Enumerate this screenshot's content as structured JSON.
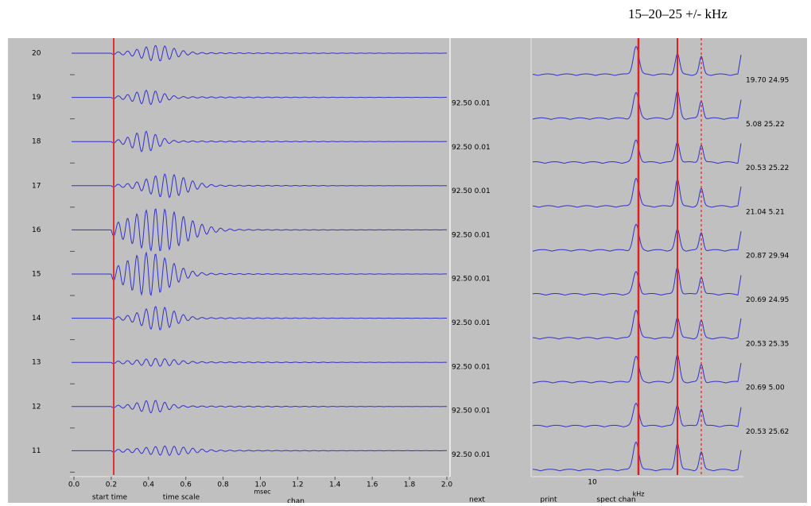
{
  "header": {
    "title": "15–20–25 +/- kHz"
  },
  "channels": [
    "20",
    "19",
    "18",
    "17",
    "16",
    "15",
    "14",
    "13",
    "12",
    "11"
  ],
  "time_ticks": [
    "0.0",
    "0.2",
    "0.4",
    "0.6",
    "0.8",
    "1.0",
    "1.2",
    "1.4",
    "1.6",
    "1.8",
    "2.0"
  ],
  "amp_labels": [
    "92.50 0.01",
    "92.50 0.01",
    "92.50 0.01",
    "92.50 0.01",
    "92.50 0.01",
    "92.50 0.01",
    "92.50 0.01",
    "92.50 0.01",
    "92.50 0.01"
  ],
  "spectrum_labels": [
    "19.70 24.95",
    "5.08 25.22",
    "20.53 25.22",
    "21.04 5.21",
    "20.87 29.94",
    "20.69 24.95",
    "20.53 25.35",
    "20.69 5.00",
    "20.53 25.62"
  ],
  "spectrum_tick": "10",
  "controls": {
    "start_time": "start time",
    "time_scale": "time scale",
    "msec": "msec",
    "chan": "chan",
    "next": "next",
    "print": "print",
    "spect_chan": "spect chan",
    "khz": "kHz"
  }
}
